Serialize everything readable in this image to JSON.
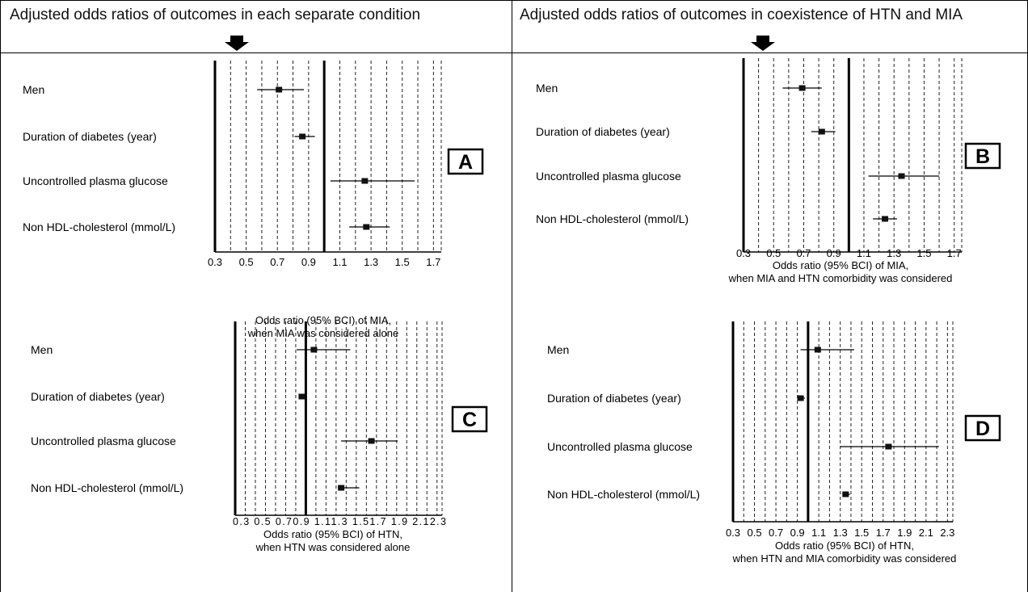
{
  "headers": {
    "left": "Adjusted odds ratios of outcomes in each separate condition",
    "right": "Adjusted odds ratios of outcomes in coexistence of HTN and MIA"
  },
  "chart_data": [
    {
      "type": "forest",
      "panel_label": "A",
      "xlabel_line1": "Odds ratio (95% BCI) of MIA,",
      "xlabel_line2": "when MIA was considered alone",
      "xticks": [
        "0.3",
        "0.5",
        "0.7",
        "0.9",
        "1.1",
        "1.3",
        "1.5",
        "1.7"
      ],
      "xlim": [
        0.3,
        1.75
      ],
      "reference": 1.0,
      "categories": [
        "Men",
        "Duration of diabetes (year)",
        "Uncontrolled plasma glucose",
        "Non HDL-cholesterol (mmol/L)"
      ],
      "estimates": [
        0.71,
        0.86,
        1.26,
        1.27
      ],
      "lower": [
        0.57,
        0.81,
        1.04,
        1.16
      ],
      "upper": [
        0.87,
        0.94,
        1.58,
        1.42
      ]
    },
    {
      "type": "forest",
      "panel_label": "B",
      "xlabel_line1": "Odds ratio (95% BCI) of MIA,",
      "xlabel_line2": "when MIA and HTN comorbidity was considered",
      "xticks": [
        "0.3",
        "0.5",
        "0.7",
        "0.9",
        "1.1",
        "1.3",
        "1.5",
        "1.7"
      ],
      "xlim": [
        0.3,
        1.75
      ],
      "reference": 1.0,
      "categories": [
        "Men",
        "Duration of diabetes (year)",
        "Uncontrolled plasma glucose",
        "Non HDL-cholesterol (mmol/L)"
      ],
      "estimates": [
        0.69,
        0.82,
        1.35,
        1.24
      ],
      "lower": [
        0.56,
        0.75,
        1.13,
        1.16
      ],
      "upper": [
        0.82,
        0.91,
        1.6,
        1.32
      ]
    },
    {
      "type": "forest",
      "panel_label": "C",
      "xlabel_line1": "Odds ratio (95% BCI) of HTN,",
      "xlabel_line2": "when HTN was considered alone",
      "xticks": [
        "0.3",
        "0.5",
        "0.7",
        "0.9",
        "1.1",
        "1.3",
        "1.5",
        "1.7",
        "1.9",
        "2.1",
        "2.3"
      ],
      "xticks_text": "0.3 0.5 0.70.9 1.11.3 1.51.7 1.9 2.12.3",
      "xlim": [
        0.3,
        2.35
      ],
      "reference": 1.0,
      "categories": [
        "Men",
        "Duration of diabetes (year)",
        "Uncontrolled plasma glucose",
        "Non HDL-cholesterol (mmol/L)"
      ],
      "estimates": [
        1.08,
        0.96,
        1.65,
        1.35
      ],
      "lower": [
        0.91,
        0.93,
        1.35,
        1.32
      ],
      "upper": [
        1.44,
        0.99,
        1.91,
        1.53
      ]
    },
    {
      "type": "forest",
      "panel_label": "D",
      "xlabel_line1": "Odds ratio (95% BCI) of HTN,",
      "xlabel_line2": "when HTN and MIA comorbidity was considered",
      "xticks": [
        "0.3",
        "0.5",
        "0.7",
        "0.9",
        "1.1",
        "1.3",
        "1.5",
        "1.7",
        "1.9",
        "2.1",
        "2.3"
      ],
      "xlim": [
        0.3,
        2.35
      ],
      "reference": 1.0,
      "categories": [
        "Men",
        "Duration of diabetes (year)",
        "Uncontrolled plasma glucose",
        "Non HDL-cholesterol (mmol/L)"
      ],
      "estimates": [
        1.09,
        0.93,
        1.75,
        1.35
      ],
      "lower": [
        0.93,
        0.9,
        1.3,
        1.32
      ],
      "upper": [
        1.43,
        0.97,
        2.22,
        1.39
      ]
    }
  ]
}
